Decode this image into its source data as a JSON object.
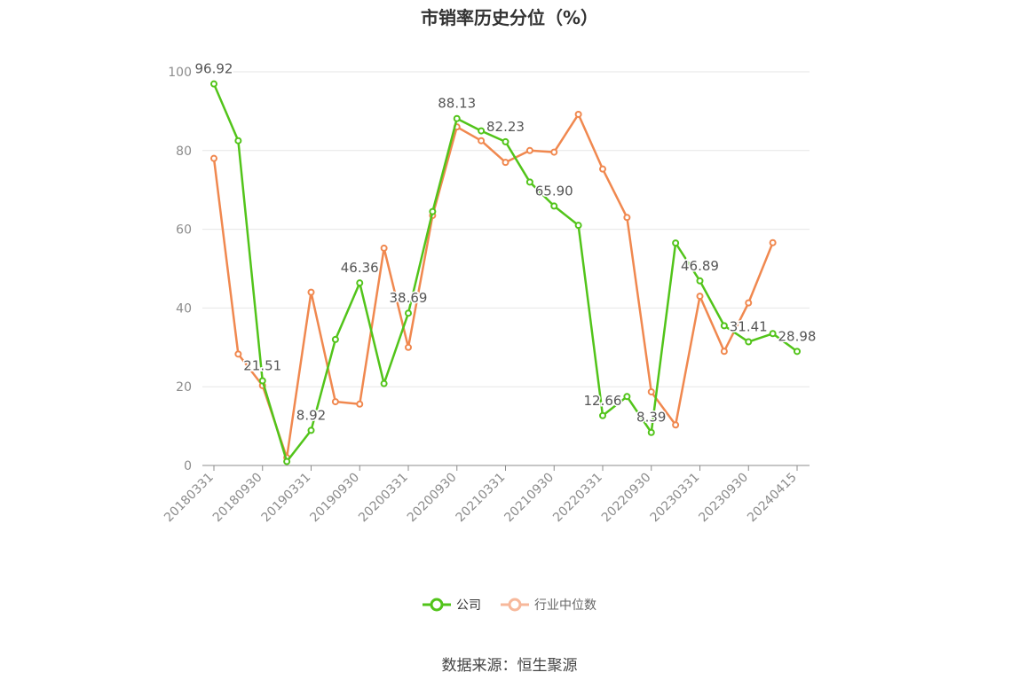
{
  "title": "市销率历史分位（%）",
  "source": "数据来源：恒生聚源",
  "legend": {
    "company": "公司",
    "industry": "行业中位数"
  },
  "colors": {
    "company": "#52c41a",
    "industry": "#f0884f",
    "industry_legend": "#f7b89b",
    "grid": "#e6e6e6",
    "axis": "#8c8c8c",
    "label": "#555555"
  },
  "chart_data": {
    "type": "line",
    "ylim": [
      0,
      100
    ],
    "yticks": [
      0,
      20,
      40,
      60,
      80,
      100
    ],
    "x": [
      "20180331",
      "20180630",
      "20180930",
      "20181231",
      "20190331",
      "20190630",
      "20190930",
      "20191231",
      "20200331",
      "20200630",
      "20200930",
      "20201231",
      "20210331",
      "20210630",
      "20210930",
      "20211231",
      "20220331",
      "20220630",
      "20220930",
      "20221231",
      "20230331",
      "20230630",
      "20230930",
      "20231231",
      "20240415"
    ],
    "xtick_labels": [
      "20180331",
      "20180930",
      "20190331",
      "20190930",
      "20200331",
      "20200930",
      "20210331",
      "20210930",
      "20220331",
      "20220930",
      "20230331",
      "20230930",
      "20240415"
    ],
    "series": [
      {
        "name": "公司",
        "values": [
          96.92,
          82.5,
          21.51,
          1.0,
          8.92,
          32.0,
          46.36,
          20.8,
          38.69,
          64.5,
          88.13,
          85.0,
          82.23,
          72.0,
          65.9,
          61.0,
          12.66,
          17.5,
          8.39,
          56.5,
          46.89,
          35.5,
          31.41,
          33.5,
          28.98
        ]
      },
      {
        "name": "行业中位数",
        "values": [
          78.0,
          28.3,
          20.3,
          2.0,
          44.0,
          16.2,
          15.6,
          55.2,
          30.0,
          63.5,
          86.0,
          82.5,
          77.0,
          80.0,
          79.6,
          89.2,
          75.3,
          63.0,
          18.7,
          10.3,
          43.0,
          29.0,
          41.3,
          56.6,
          null
        ]
      }
    ],
    "data_labels": [
      {
        "index": 0,
        "text": "96.92"
      },
      {
        "index": 2,
        "text": "21.51"
      },
      {
        "index": 4,
        "text": "8.92"
      },
      {
        "index": 6,
        "text": "46.36"
      },
      {
        "index": 8,
        "text": "38.69"
      },
      {
        "index": 10,
        "text": "88.13"
      },
      {
        "index": 12,
        "text": "82.23"
      },
      {
        "index": 14,
        "text": "65.90"
      },
      {
        "index": 16,
        "text": "12.66"
      },
      {
        "index": 18,
        "text": "8.39"
      },
      {
        "index": 20,
        "text": "46.89"
      },
      {
        "index": 22,
        "text": "31.41"
      },
      {
        "index": 24,
        "text": "28.98"
      }
    ]
  }
}
